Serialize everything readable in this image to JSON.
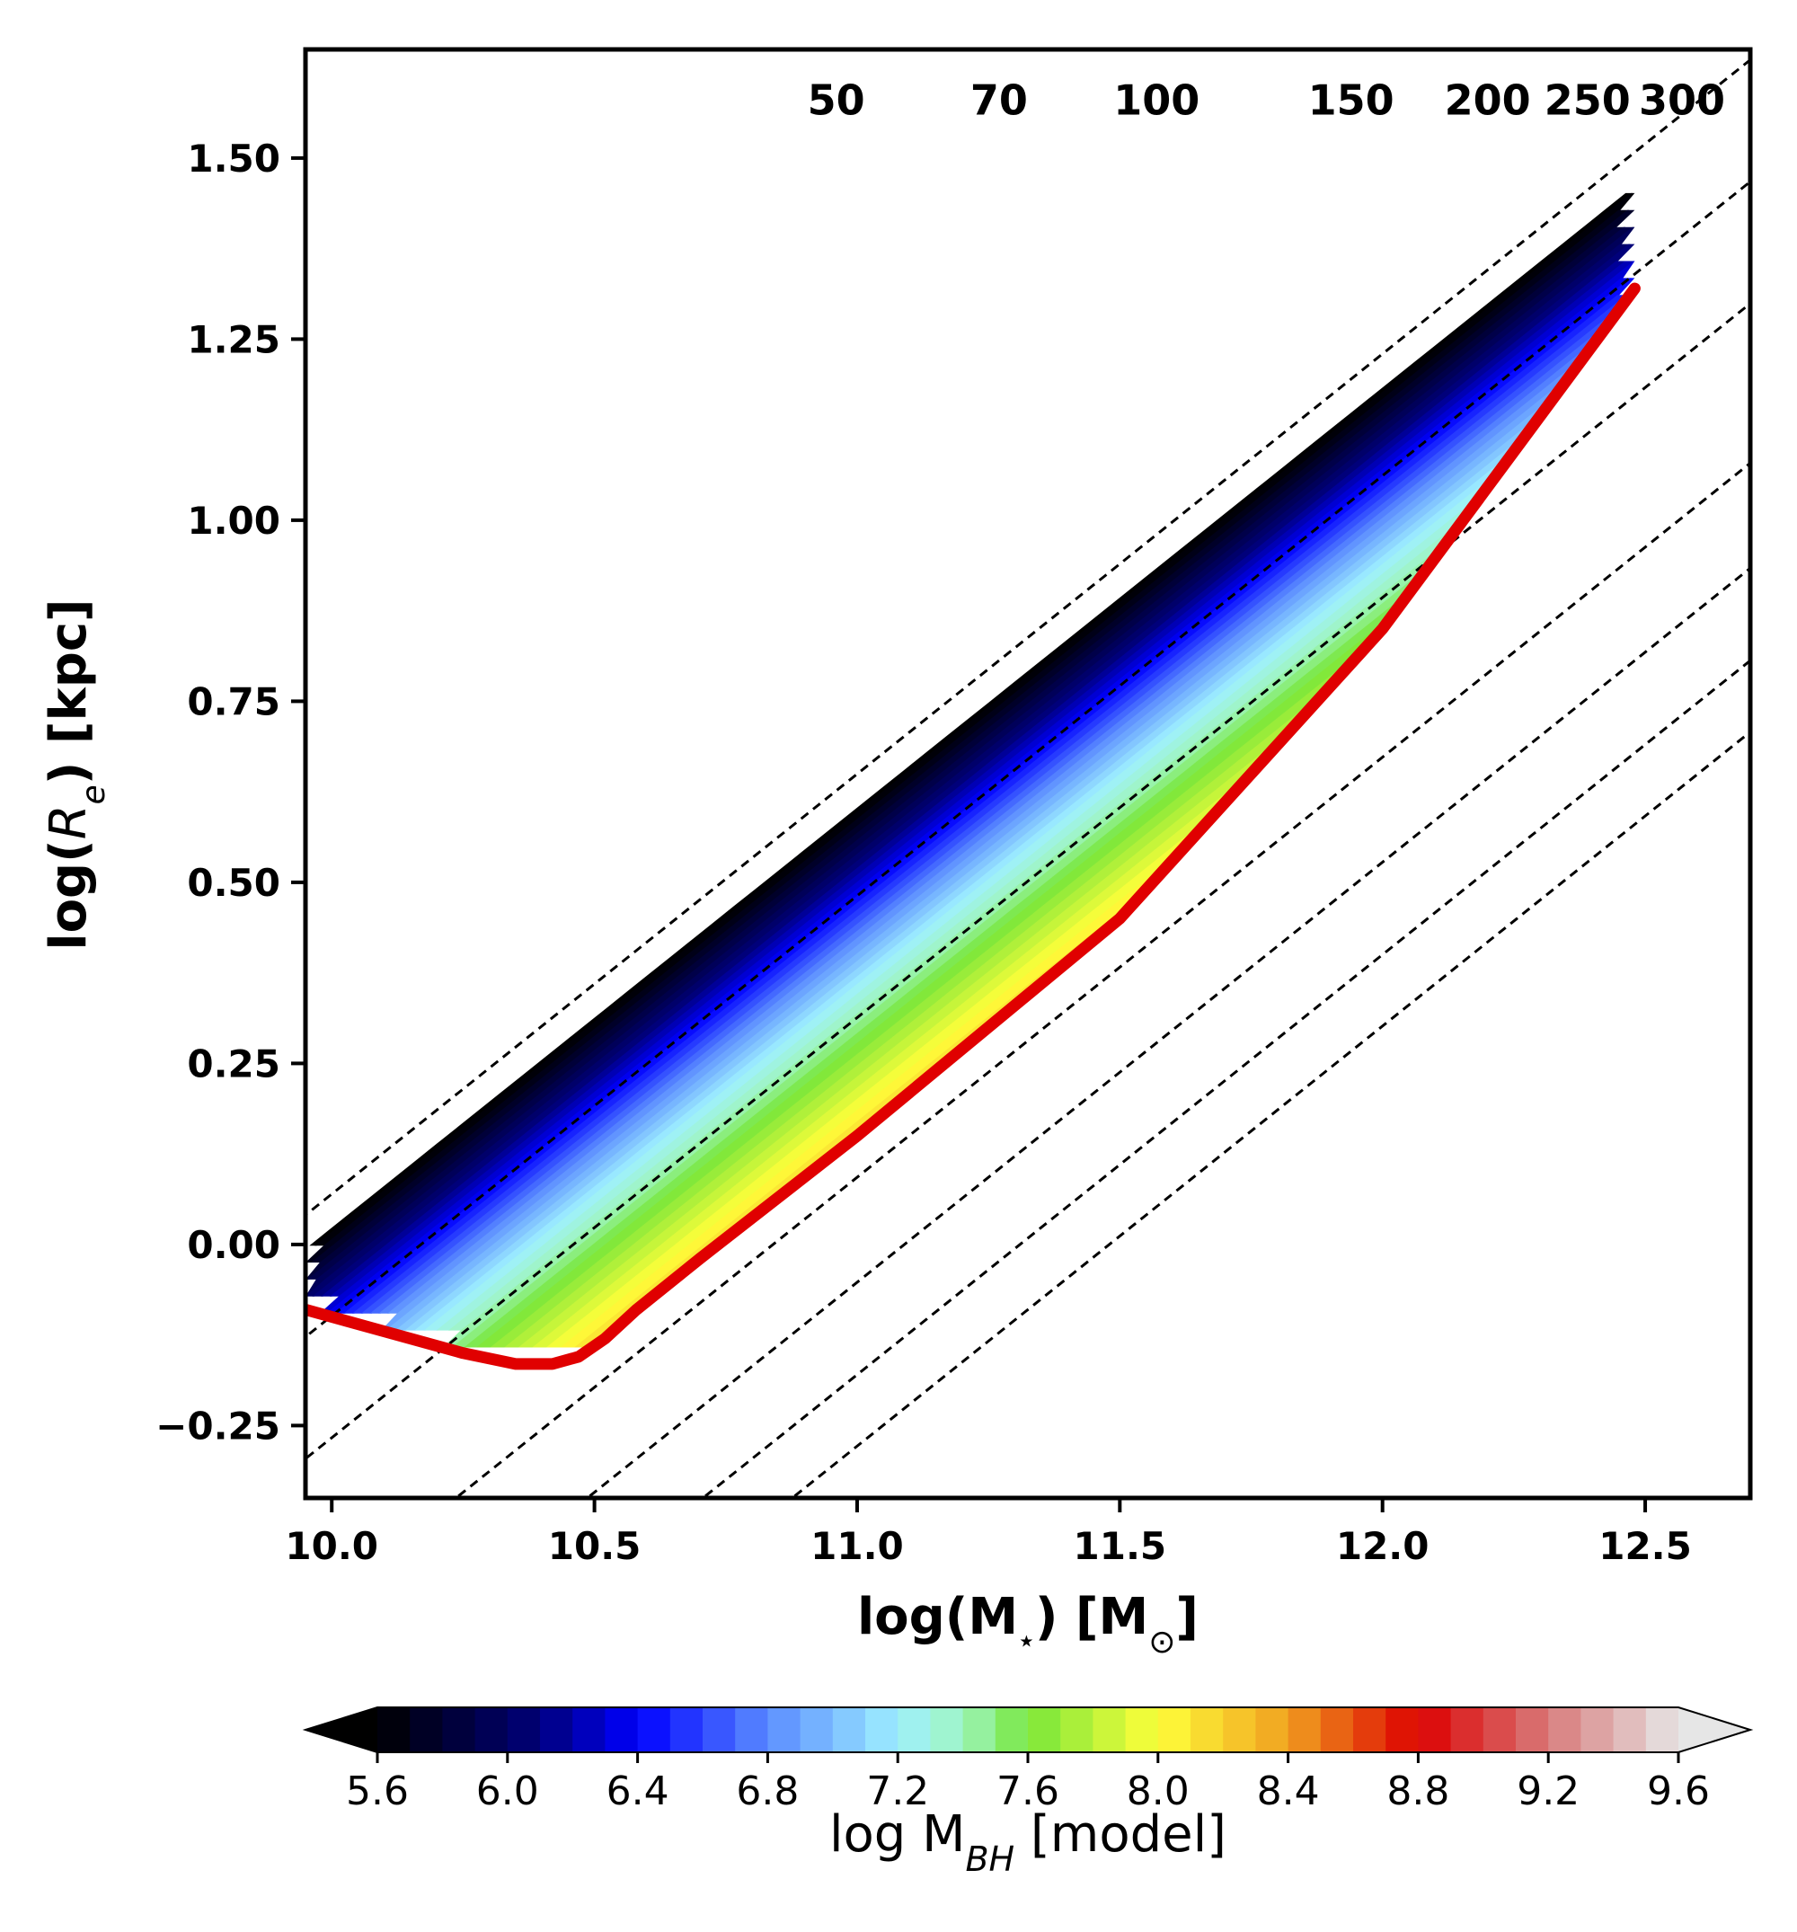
{
  "chart_data": {
    "type": "contourf",
    "xlabel_main": "log(M",
    "xlabel_sub": "⋆",
    "xlabel_tail": ") [M",
    "xlabel_sun": "⊙",
    "xlabel_end": "]",
    "ylabel_main": "log(",
    "ylabel_var": "R",
    "ylabel_sub": "e",
    "ylabel_tail": ") [kpc]",
    "xlim": [
      9.95,
      12.7
    ],
    "ylim": [
      -0.35,
      1.65
    ],
    "xticks": [
      {
        "value": 10.0,
        "label": "10.0"
      },
      {
        "value": 10.5,
        "label": "10.5"
      },
      {
        "value": 11.0,
        "label": "11.0"
      },
      {
        "value": 11.5,
        "label": "11.5"
      },
      {
        "value": 12.0,
        "label": "12.0"
      },
      {
        "value": 12.5,
        "label": "12.5"
      }
    ],
    "yticks": [
      {
        "value": -0.25,
        "label": "−0.25"
      },
      {
        "value": 0.0,
        "label": "0.00"
      },
      {
        "value": 0.25,
        "label": "0.25"
      },
      {
        "value": 0.5,
        "label": "0.50"
      },
      {
        "value": 0.75,
        "label": "0.75"
      },
      {
        "value": 1.0,
        "label": "1.00"
      },
      {
        "value": 1.25,
        "label": "1.25"
      },
      {
        "value": 1.5,
        "label": "1.50"
      }
    ],
    "dispersion_lines": [
      {
        "sigma": 50,
        "label": "50",
        "x_at_y0": 9.88,
        "label_x": 10.96
      },
      {
        "sigma": 70,
        "label": "70",
        "x_at_y0": 10.17,
        "label_x": 11.27
      },
      {
        "sigma": 100,
        "label": "100",
        "x_at_y0": 10.46,
        "label_x": 11.57
      },
      {
        "sigma": 150,
        "label": "150",
        "x_at_y0": 10.84,
        "label_x": 11.94
      },
      {
        "sigma": 200,
        "label": "200",
        "x_at_y0": 11.09,
        "label_x": 12.2
      },
      {
        "sigma": 250,
        "label": "250",
        "x_at_y0": 11.31,
        "label_x": 12.39
      },
      {
        "sigma": 300,
        "label": "300",
        "x_at_y0": 11.48,
        "label_x": 12.57
      }
    ],
    "dispersion_slope": 0.58,
    "dispersion_label_y": 1.56,
    "model_region": {
      "y_max": 1.475,
      "upper_boundary_x_at_y0": 9.96,
      "x_max": 12.48,
      "left_edge_x": 9.95,
      "bands": [
        {
          "mbh": 5.6,
          "x_at_y0": 9.97
        },
        {
          "mbh": 6.0,
          "x_at_y0": 10.07
        },
        {
          "mbh": 6.4,
          "x_at_y0": 10.17
        },
        {
          "mbh": 6.8,
          "x_at_y0": 10.27
        },
        {
          "mbh": 7.2,
          "x_at_y0": 10.38
        },
        {
          "mbh": 7.6,
          "x_at_y0": 10.52
        },
        {
          "mbh": 8.0,
          "x_at_y0": 10.68
        },
        {
          "mbh": 8.4,
          "x_at_y0": 10.84
        },
        {
          "mbh": 8.8,
          "x_at_y0": 11.01
        },
        {
          "mbh": 9.2,
          "x_at_y0": 11.16
        },
        {
          "mbh": 9.6,
          "x_at_y0": 11.3
        }
      ],
      "band_slope": 0.58,
      "boundary_curve": {
        "color": "#e00000",
        "x": [
          9.95,
          10.1,
          10.25,
          10.35,
          10.42,
          10.47,
          10.52,
          10.58,
          10.7,
          11.0,
          11.5,
          12.0,
          12.48
        ],
        "y": [
          -0.09,
          -0.12,
          -0.15,
          -0.165,
          -0.165,
          -0.155,
          -0.13,
          -0.09,
          -0.02,
          0.15,
          0.45,
          0.85,
          1.32
        ]
      }
    },
    "colorbar": {
      "label_main": "log M",
      "label_sub": "BH",
      "label_tail": " [model]",
      "range": [
        5.6,
        9.6
      ],
      "extend": "both",
      "ticks": [
        {
          "value": 5.6,
          "label": "5.6"
        },
        {
          "value": 6.0,
          "label": "6.0"
        },
        {
          "value": 6.4,
          "label": "6.4"
        },
        {
          "value": 6.8,
          "label": "6.8"
        },
        {
          "value": 7.2,
          "label": "7.2"
        },
        {
          "value": 7.6,
          "label": "7.6"
        },
        {
          "value": 8.0,
          "label": "8.0"
        },
        {
          "value": 8.4,
          "label": "8.4"
        },
        {
          "value": 8.8,
          "label": "8.8"
        },
        {
          "value": 9.2,
          "label": "9.2"
        },
        {
          "value": 9.6,
          "label": "9.6"
        }
      ],
      "colormap": [
        {
          "v": 5.6,
          "color": "#000000"
        },
        {
          "v": 6.1,
          "color": "#00007a"
        },
        {
          "v": 6.4,
          "color": "#0000ff"
        },
        {
          "v": 6.8,
          "color": "#5b8cff"
        },
        {
          "v": 7.2,
          "color": "#9ff0ff"
        },
        {
          "v": 7.4,
          "color": "#9ff5c0"
        },
        {
          "v": 7.6,
          "color": "#77e63a"
        },
        {
          "v": 8.0,
          "color": "#ffff3a"
        },
        {
          "v": 8.4,
          "color": "#f0a020"
        },
        {
          "v": 8.8,
          "color": "#dc0000"
        },
        {
          "v": 9.2,
          "color": "#d87a7a"
        },
        {
          "v": 9.6,
          "color": "#e6e6e6"
        }
      ],
      "levels": 60
    }
  }
}
